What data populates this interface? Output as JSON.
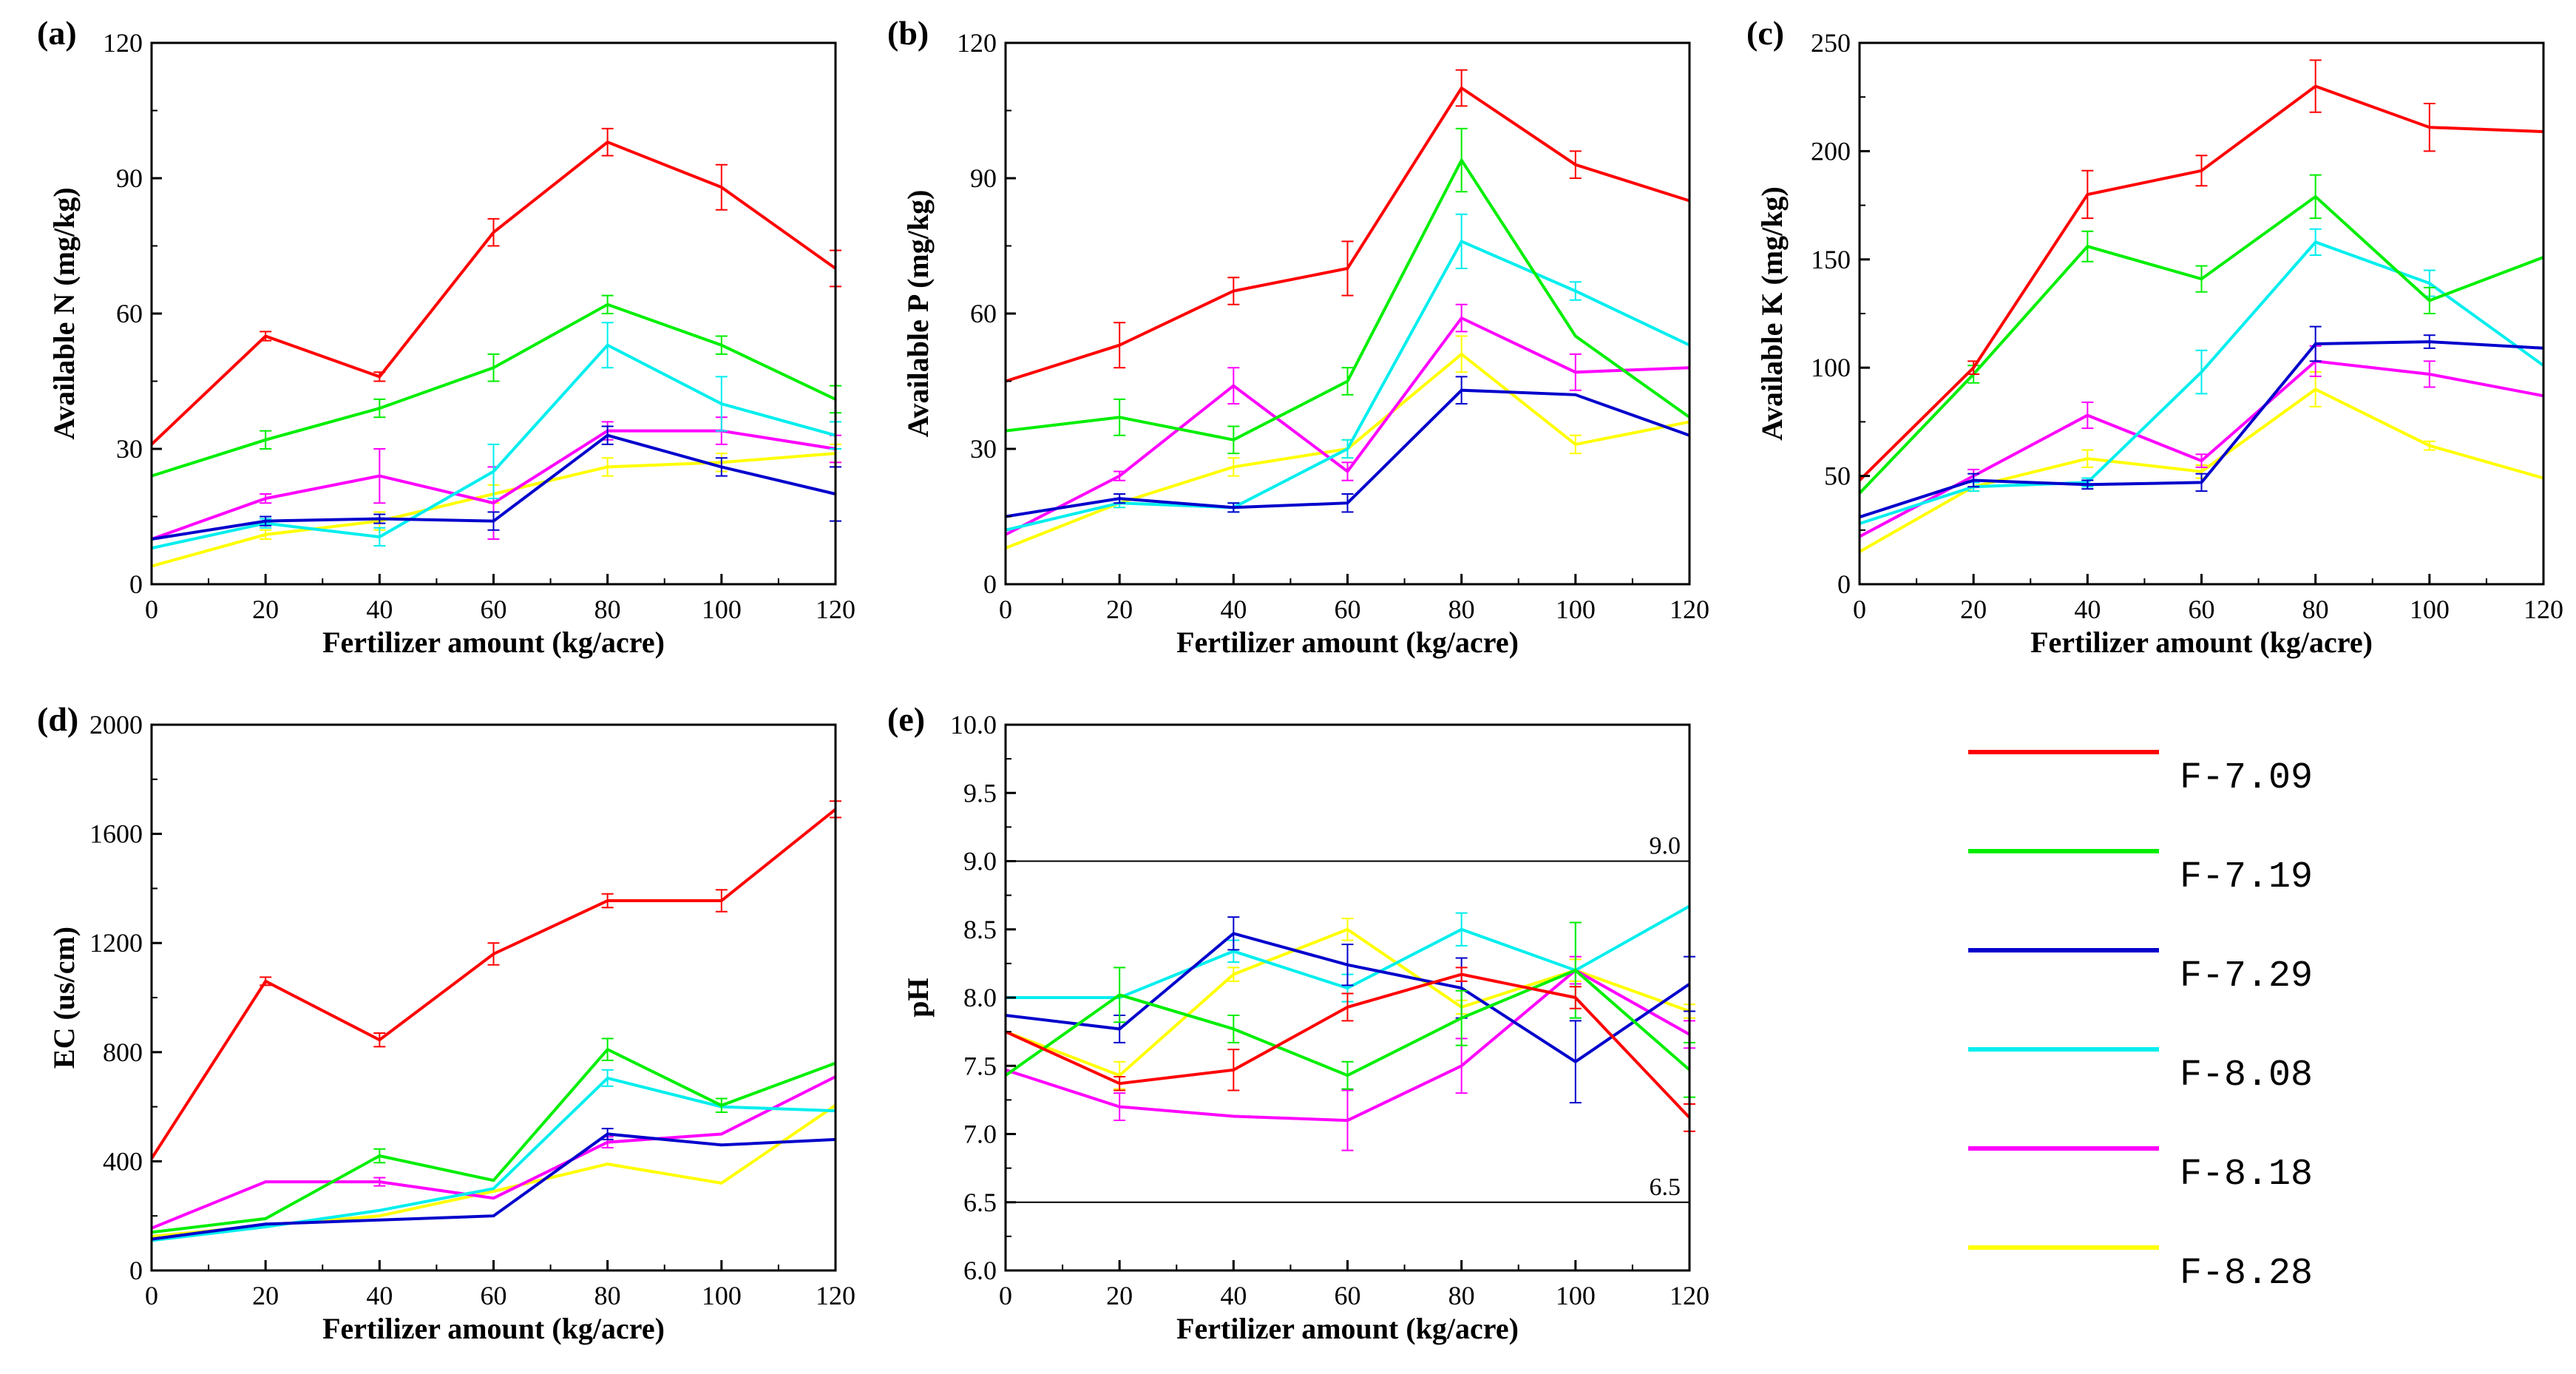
{
  "chart_data": [
    {
      "type": "line",
      "panel": "(a)",
      "xlabel": "Fertilizer amount (kg/acre)",
      "ylabel": "Available N (mg/kg)",
      "x": [
        0,
        20,
        40,
        60,
        80,
        100,
        120
      ],
      "xlim": [
        0,
        120
      ],
      "ylim": [
        0,
        120
      ],
      "yticks": [
        0,
        30,
        60,
        90,
        120
      ],
      "series": [
        {
          "name": "F-7.09",
          "values": [
            31,
            55,
            46,
            78,
            98,
            88,
            70
          ],
          "errors": [
            0,
            1,
            1,
            3,
            3,
            5,
            4
          ]
        },
        {
          "name": "F-7.19",
          "values": [
            24,
            32,
            39,
            48,
            62,
            53,
            41
          ],
          "errors": [
            0,
            2,
            2,
            3,
            2,
            2,
            3
          ]
        },
        {
          "name": "F-7.29",
          "values": [
            10,
            14,
            14.5,
            14,
            33,
            26,
            20
          ],
          "errors": [
            0,
            1,
            1,
            2,
            2,
            2,
            6
          ]
        },
        {
          "name": "F-8.08",
          "values": [
            8,
            13.5,
            10.5,
            25,
            53,
            40,
            33
          ],
          "errors": [
            0,
            1,
            2,
            6,
            5,
            6,
            3
          ]
        },
        {
          "name": "F-8.18",
          "values": [
            10,
            19,
            24,
            18,
            34,
            34,
            30
          ],
          "errors": [
            0,
            1,
            6,
            8,
            2,
            3,
            3
          ]
        },
        {
          "name": "F-8.28",
          "values": [
            4,
            11,
            14,
            20,
            26,
            27,
            29
          ],
          "errors": [
            0,
            1,
            2,
            2,
            2,
            2,
            2
          ]
        }
      ]
    },
    {
      "type": "line",
      "panel": "(b)",
      "xlabel": "Fertilizer amount (kg/acre)",
      "ylabel": "Available P (mg/kg)",
      "x": [
        0,
        20,
        40,
        60,
        80,
        100,
        120
      ],
      "xlim": [
        0,
        120
      ],
      "ylim": [
        0,
        120
      ],
      "yticks": [
        0,
        30,
        60,
        90,
        120
      ],
      "series": [
        {
          "name": "F-7.09",
          "values": [
            45,
            53,
            65,
            70,
            110,
            93,
            85
          ],
          "errors": [
            0,
            5,
            3,
            6,
            4,
            3,
            0
          ]
        },
        {
          "name": "F-7.19",
          "values": [
            34,
            37,
            32,
            45,
            94,
            55,
            37
          ],
          "errors": [
            0,
            4,
            3,
            3,
            7,
            0,
            0
          ]
        },
        {
          "name": "F-7.29",
          "values": [
            15,
            19,
            17,
            18,
            43,
            42,
            33
          ],
          "errors": [
            0,
            1,
            1,
            2,
            3,
            0,
            0
          ]
        },
        {
          "name": "F-8.08",
          "values": [
            12,
            18,
            17,
            30,
            76,
            65,
            53
          ],
          "errors": [
            0,
            1,
            1,
            2,
            6,
            2,
            0
          ]
        },
        {
          "name": "F-8.18",
          "values": [
            11,
            24,
            44,
            25,
            59,
            47,
            48
          ],
          "errors": [
            0,
            1,
            4,
            2,
            3,
            4,
            0
          ]
        },
        {
          "name": "F-8.28",
          "values": [
            8,
            18,
            26,
            30,
            51,
            31,
            36
          ],
          "errors": [
            0,
            1,
            2,
            2,
            4,
            2,
            0
          ]
        }
      ]
    },
    {
      "type": "line",
      "panel": "(c)",
      "xlabel": "Fertilizer amount (kg/acre)",
      "ylabel": "Available K (mg/kg)",
      "x": [
        0,
        20,
        40,
        60,
        80,
        100,
        120
      ],
      "xlim": [
        0,
        120
      ],
      "ylim": [
        0,
        250
      ],
      "yticks": [
        0,
        50,
        100,
        150,
        200,
        250
      ],
      "series": [
        {
          "name": "F-7.09",
          "values": [
            48,
            100,
            180,
            191,
            230,
            211,
            209
          ],
          "errors": [
            0,
            3,
            11,
            7,
            12,
            11,
            0
          ]
        },
        {
          "name": "F-7.19",
          "values": [
            42,
            97,
            156,
            141,
            179,
            131,
            151
          ],
          "errors": [
            0,
            4,
            7,
            6,
            10,
            6,
            0
          ]
        },
        {
          "name": "F-7.29",
          "values": [
            31,
            48,
            46,
            47,
            111,
            112,
            109
          ],
          "errors": [
            0,
            3,
            2,
            4,
            8,
            3,
            0
          ]
        },
        {
          "name": "F-8.08",
          "values": [
            28,
            45,
            47,
            98,
            158,
            139,
            101
          ],
          "errors": [
            0,
            2,
            2,
            10,
            6,
            6,
            0
          ]
        },
        {
          "name": "F-8.18",
          "values": [
            22,
            50,
            78,
            57,
            103,
            97,
            87
          ],
          "errors": [
            0,
            3,
            6,
            3,
            7,
            6,
            0
          ]
        },
        {
          "name": "F-8.28",
          "values": [
            15,
            45,
            58,
            52,
            90,
            64,
            49
          ],
          "errors": [
            0,
            2,
            4,
            3,
            8,
            2,
            0
          ]
        }
      ]
    },
    {
      "type": "line",
      "panel": "(d)",
      "xlabel": "Fertilizer amount (kg/acre)",
      "ylabel": "EC (us/cm)",
      "x": [
        0,
        20,
        40,
        60,
        80,
        100,
        120
      ],
      "xlim": [
        0,
        120
      ],
      "ylim": [
        0,
        2000
      ],
      "yticks": [
        0,
        400,
        800,
        1200,
        1600,
        2000
      ],
      "series": [
        {
          "name": "F-7.09",
          "values": [
            410,
            1060,
            845,
            1160,
            1355,
            1355,
            1690
          ],
          "errors": [
            0,
            15,
            25,
            40,
            25,
            40,
            30
          ]
        },
        {
          "name": "F-7.19",
          "values": [
            140,
            190,
            420,
            330,
            810,
            605,
            760
          ],
          "errors": [
            0,
            0,
            25,
            0,
            40,
            25,
            0
          ]
        },
        {
          "name": "F-7.29",
          "values": [
            115,
            170,
            185,
            200,
            500,
            460,
            480
          ],
          "errors": [
            0,
            0,
            0,
            0,
            20,
            0,
            0
          ]
        },
        {
          "name": "F-8.08",
          "values": [
            110,
            160,
            220,
            300,
            705,
            600,
            585
          ],
          "errors": [
            0,
            0,
            0,
            0,
            30,
            0,
            0
          ]
        },
        {
          "name": "F-8.18",
          "values": [
            155,
            325,
            325,
            265,
            470,
            500,
            710
          ],
          "errors": [
            0,
            0,
            15,
            0,
            20,
            0,
            0
          ]
        },
        {
          "name": "F-8.28",
          "values": [
            125,
            165,
            200,
            290,
            390,
            320,
            605
          ],
          "errors": [
            0,
            0,
            0,
            0,
            0,
            0,
            0
          ]
        }
      ]
    },
    {
      "type": "line",
      "panel": "(e)",
      "xlabel": "Fertilizer amount (kg/acre)",
      "ylabel": "pH",
      "x": [
        0,
        20,
        40,
        60,
        80,
        100,
        120
      ],
      "xlim": [
        0,
        120
      ],
      "ylim": [
        6.0,
        10.0
      ],
      "yticks": [
        "6.0",
        "6.5",
        "7.0",
        "7.5",
        "8.0",
        "8.5",
        "9.0",
        "9.5",
        "10.0"
      ],
      "reference_lines": [
        {
          "value": 9.0,
          "label": "9.0"
        },
        {
          "value": 6.5,
          "label": "6.5"
        }
      ],
      "series": [
        {
          "name": "F-7.09",
          "values": [
            7.75,
            7.37,
            7.47,
            7.93,
            8.17,
            8.0,
            7.12
          ],
          "errors": [
            0,
            0.05,
            0.15,
            0.1,
            0.05,
            0.08,
            0.1
          ]
        },
        {
          "name": "F-7.19",
          "values": [
            7.43,
            8.02,
            7.77,
            7.43,
            7.85,
            8.2,
            7.47
          ],
          "errors": [
            0,
            0.2,
            0.1,
            0.1,
            0.2,
            0.35,
            0.2
          ]
        },
        {
          "name": "F-7.29",
          "values": [
            7.87,
            7.77,
            8.47,
            8.24,
            8.07,
            7.53,
            8.1
          ],
          "errors": [
            0,
            0.1,
            0.12,
            0.15,
            0.22,
            0.3,
            0.2
          ]
        },
        {
          "name": "F-8.08",
          "values": [
            8.0,
            8.0,
            8.34,
            8.07,
            8.5,
            8.2,
            8.67
          ],
          "errors": [
            0,
            0,
            0.08,
            0.1,
            0.12,
            0.35,
            0
          ]
        },
        {
          "name": "F-8.18",
          "values": [
            7.47,
            7.2,
            7.13,
            7.1,
            7.5,
            8.2,
            7.73
          ],
          "errors": [
            0,
            0.1,
            0,
            0.22,
            0.2,
            0.1,
            0.1
          ]
        },
        {
          "name": "F-8.28",
          "values": [
            7.75,
            7.43,
            8.17,
            8.5,
            7.93,
            8.2,
            7.9
          ],
          "errors": [
            0,
            0.1,
            0.05,
            0.08,
            0.05,
            0.08,
            0.05
          ]
        }
      ]
    }
  ],
  "legend": [
    {
      "label": "F-7.09",
      "color": "#ff0000"
    },
    {
      "label": "F-7.19",
      "color": "#00ee00"
    },
    {
      "label": "F-7.29",
      "color": "#0000cc"
    },
    {
      "label": "F-8.08",
      "color": "#00eeee"
    },
    {
      "label": "F-8.18",
      "color": "#ff00ff"
    },
    {
      "label": "F-8.28",
      "color": "#ffff00"
    }
  ]
}
